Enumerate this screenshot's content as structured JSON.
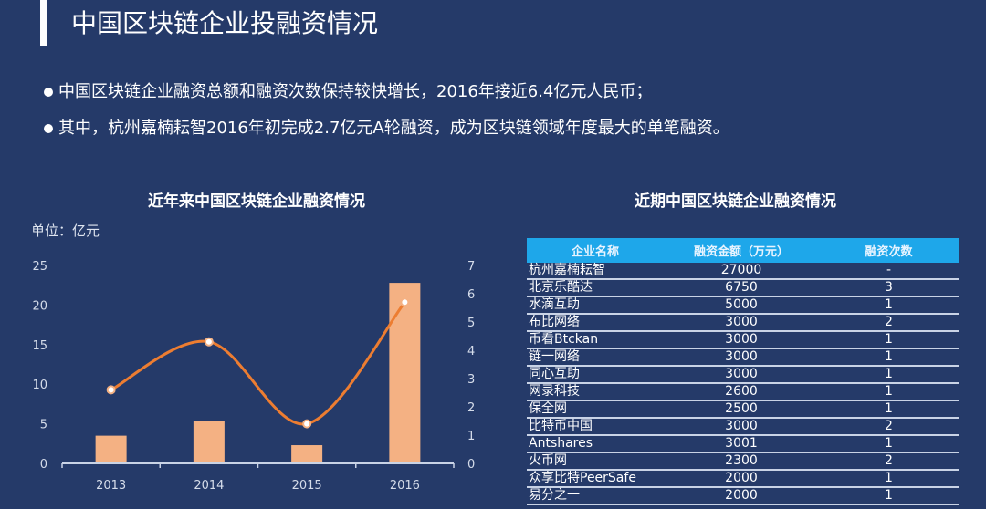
{
  "header": {
    "title": "中国区块链企业投融资情况"
  },
  "bullets": [
    "中国区块链企业融资总额和融资次数保持较快增长，2016年接近6.4亿元人民币；",
    "其中，杭州嘉楠耘智2016年初完成2.7亿元A轮融资，成为区块链领域年度最大的单笔融资。"
  ],
  "chart_data": {
    "type": "bar+line",
    "title": "近年来中国区块链企业融资情况",
    "unit_label": "单位：亿元",
    "categories": [
      "2013",
      "2014",
      "2015",
      "2016"
    ],
    "series": [
      {
        "type": "bar",
        "axis": "left",
        "values": [
          3.5,
          5.3,
          2.3,
          22.8
        ],
        "color": "#f4b183"
      },
      {
        "type": "line",
        "axis": "right",
        "smooth": true,
        "values": [
          2.6,
          4.3,
          1.4,
          5.7
        ],
        "color": "#ed7d31"
      }
    ],
    "left_axis": {
      "range": [
        0,
        25
      ],
      "ticks": [
        "0",
        "5",
        "10",
        "15",
        "20",
        "25"
      ]
    },
    "right_axis": {
      "range": [
        0,
        7
      ],
      "ticks": [
        "0",
        "1",
        "2",
        "3",
        "4",
        "5",
        "6",
        "7"
      ]
    },
    "grid": false
  },
  "table": {
    "title": "近期中国区块链企业融资情况",
    "header_color": "#1ea7ea",
    "columns": [
      "企业名称",
      "融资金额（万元）",
      "融资次数"
    ],
    "rows": [
      [
        "杭州嘉楠耘智",
        "27000",
        "-"
      ],
      [
        "北京乐酷达",
        "6750",
        "3"
      ],
      [
        "水滴互助",
        "5000",
        "1"
      ],
      [
        "布比网络",
        "3000",
        "2"
      ],
      [
        "币看Btckan",
        "3000",
        "1"
      ],
      [
        "链一网络",
        "3000",
        "1"
      ],
      [
        "同心互助",
        "3000",
        "1"
      ],
      [
        "网录科技",
        "2600",
        "1"
      ],
      [
        "保全网",
        "2500",
        "1"
      ],
      [
        "比特币中国",
        "3000",
        "2"
      ],
      [
        "Antshares",
        "3001",
        "1"
      ],
      [
        "火币网",
        "2300",
        "2"
      ],
      [
        "众享比特PeerSafe",
        "2000",
        "1"
      ],
      [
        "易分之一",
        "2000",
        "1"
      ]
    ]
  }
}
